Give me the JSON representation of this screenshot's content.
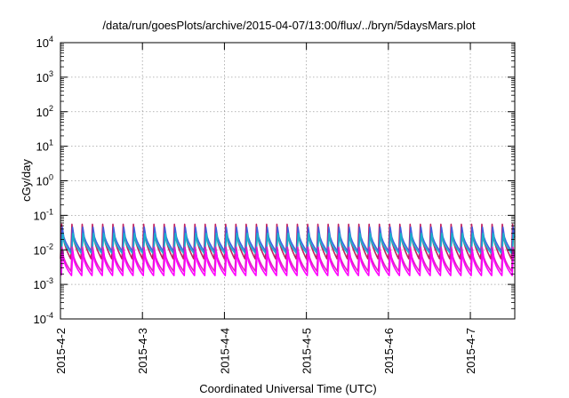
{
  "chart_data": {
    "type": "line",
    "title": "/data/run/goesPlots/archive/2015-04-07/13:00/flux/../bryn/5daysMars.plot",
    "xlabel": "Coordinated Universal Time (UTC)",
    "ylabel": "cGy/day",
    "y_scale": "log",
    "ylim": [
      0.0001,
      10000
    ],
    "y_ticks": [
      {
        "base": "10",
        "exp": "-4",
        "value": 0.0001
      },
      {
        "base": "10",
        "exp": "-3",
        "value": 0.001
      },
      {
        "base": "10",
        "exp": "-2",
        "value": 0.01
      },
      {
        "base": "10",
        "exp": "-1",
        "value": 0.1
      },
      {
        "base": "10",
        "exp": "0",
        "value": 1
      },
      {
        "base": "10",
        "exp": "1",
        "value": 10
      },
      {
        "base": "10",
        "exp": "2",
        "value": 100
      },
      {
        "base": "10",
        "exp": "3",
        "value": 1000
      },
      {
        "base": "10",
        "exp": "4",
        "value": 10000
      }
    ],
    "xlim": [
      "2015-04-02T00:00",
      "2015-04-07T13:00"
    ],
    "x_ticks": [
      "2015-4-2",
      "2015-4-3",
      "2015-4-4",
      "2015-4-5",
      "2015-4-6",
      "2015-4-7"
    ],
    "grid": true,
    "sawtooth_period_hours": 3,
    "series": [
      {
        "color": "#c02060",
        "peak": 0.055,
        "trough": 0.0055
      },
      {
        "color": "#4060e0",
        "peak": 0.045,
        "trough": 0.009
      },
      {
        "color": "#1ab4c8",
        "peak": 0.03,
        "trough": 0.0075
      },
      {
        "color": "#e020c0",
        "peak": 0.012,
        "trough": 0.0024
      },
      {
        "color": "#ff00ff",
        "peak": 0.009,
        "trough": 0.0018
      }
    ]
  }
}
